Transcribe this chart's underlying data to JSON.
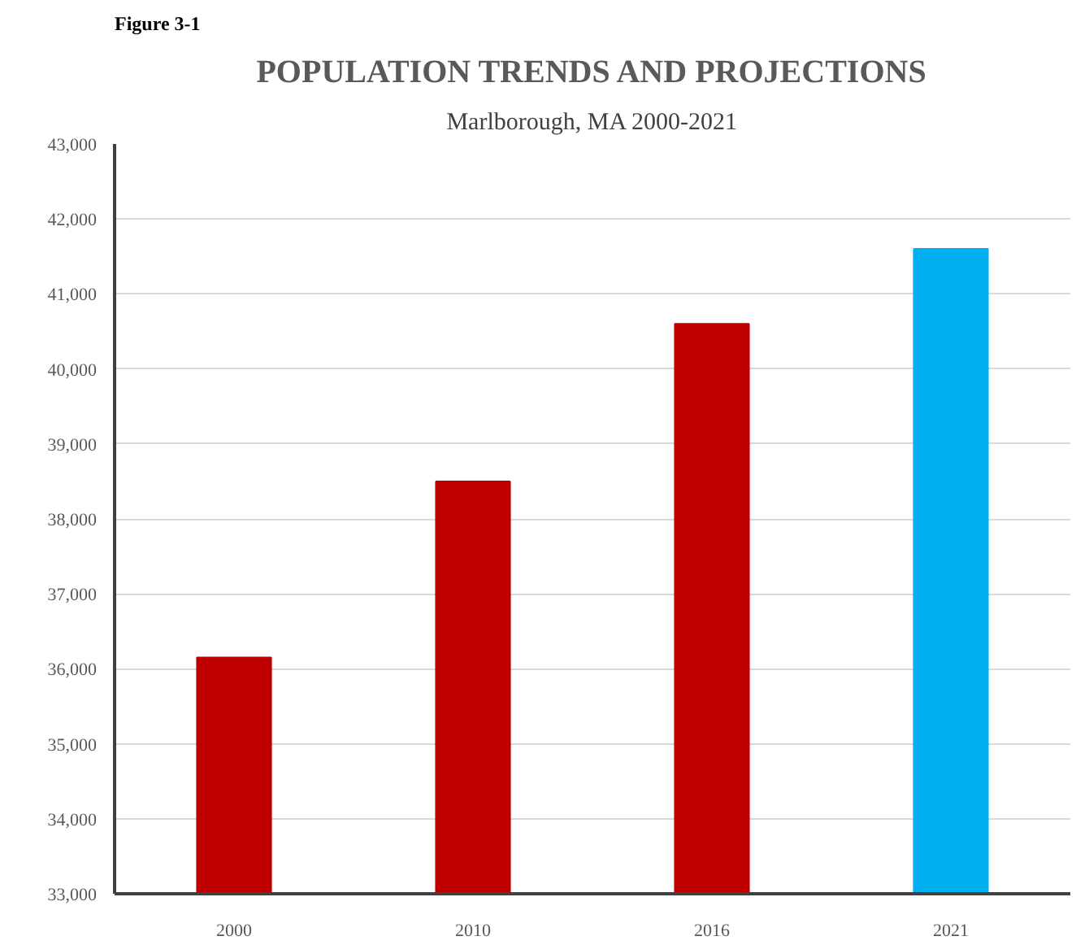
{
  "chart_data": {
    "type": "bar",
    "title": "POPULATION TRENDS AND PROJECTIONS",
    "subtitle": "Marlborough, MA 2000-2021",
    "annotations": [
      "Figure 3-1"
    ],
    "categories": [
      "2000",
      "2010",
      "2016",
      "2021"
    ],
    "values": [
      36150,
      38500,
      40600,
      41600
    ],
    "colors": [
      "#c00000",
      "#c00000",
      "#c00000",
      "#00b0f0"
    ],
    "ylim": [
      33000,
      43000
    ],
    "yticks": [
      {
        "value": 33000,
        "label": "33,000"
      },
      {
        "value": 34000,
        "label": "34,000"
      },
      {
        "value": 35000,
        "label": "35,000"
      },
      {
        "value": 36000,
        "label": "36,000"
      },
      {
        "value": 37000,
        "label": "37,000"
      },
      {
        "value": 38000,
        "label": "38,000"
      },
      {
        "value": 39000,
        "label": "39,000"
      },
      {
        "value": 40000,
        "label": "40,000"
      },
      {
        "value": 41000,
        "label": "41,000"
      },
      {
        "value": 42000,
        "label": "42,000"
      },
      {
        "value": 43000,
        "label": "43,000"
      }
    ],
    "grid": "y"
  }
}
